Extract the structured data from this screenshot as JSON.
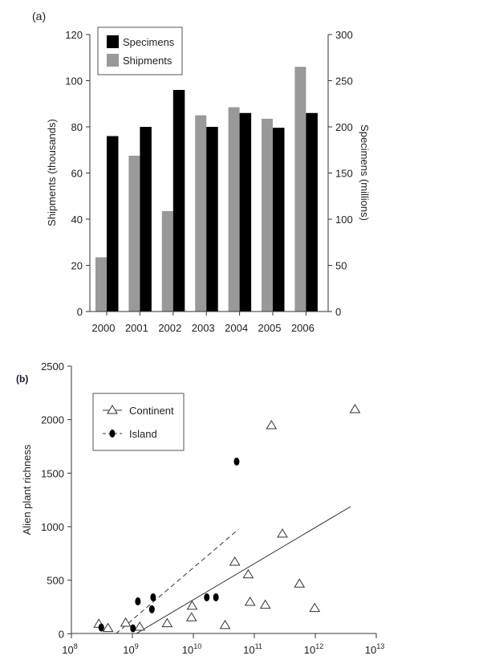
{
  "chart_data": [
    {
      "type": "bar",
      "panel_label": "(a)",
      "categories": [
        "2000",
        "2001",
        "2002",
        "2003",
        "2004",
        "2005",
        "2006"
      ],
      "series": [
        {
          "name": "Shipments",
          "axis": "left",
          "color": "#999999",
          "values": [
            23.5,
            67.5,
            43.5,
            85,
            88.5,
            83.5,
            106
          ]
        },
        {
          "name": "Specimens",
          "axis": "right",
          "color": "#000000",
          "values": [
            190,
            200,
            240,
            200,
            215,
            199,
            215
          ]
        }
      ],
      "ylabel": "Shipments (thousands)",
      "ylabel_right": "Specimens (millions)",
      "ylim": [
        0,
        120
      ],
      "ylim_right": [
        0,
        300
      ],
      "yticks": [
        "0",
        "20",
        "40",
        "60",
        "80",
        "100",
        "120"
      ],
      "yticks_right": [
        "0",
        "50",
        "100",
        "150",
        "200",
        "250",
        "300"
      ],
      "legend": {
        "position": "top-left",
        "entries": [
          "Specimens",
          "Shipments"
        ]
      },
      "grid": false
    },
    {
      "type": "scatter",
      "panel_label": "(b)",
      "xscale": "log",
      "xlim_log10": [
        8,
        13
      ],
      "xticks": [
        {
          "base": "10",
          "exp": "8"
        },
        {
          "base": "10",
          "exp": "9"
        },
        {
          "base": "10",
          "exp": "10"
        },
        {
          "base": "10",
          "exp": "11"
        },
        {
          "base": "10",
          "exp": "12"
        },
        {
          "base": "10",
          "exp": "13"
        }
      ],
      "ylabel": "Alien plant richness",
      "xlabel": "",
      "ylim": [
        0,
        2500
      ],
      "yticks": [
        "0",
        "500",
        "1000",
        "1500",
        "2000",
        "2500"
      ],
      "series": [
        {
          "name": "Continent",
          "marker": "open-triangle",
          "line": "solid",
          "points_log10x_y": [
            [
              8.45,
              90
            ],
            [
              8.6,
              50
            ],
            [
              8.89,
              100
            ],
            [
              9.12,
              62
            ],
            [
              9.57,
              95
            ],
            [
              9.98,
              258
            ],
            [
              9.97,
              150
            ],
            [
              10.52,
              78
            ],
            [
              10.68,
              670
            ],
            [
              10.9,
              552
            ],
            [
              10.93,
              295
            ],
            [
              11.18,
              268
            ],
            [
              11.28,
              1945
            ],
            [
              11.46,
              932
            ],
            [
              11.74,
              465
            ],
            [
              11.99,
              238
            ],
            [
              12.65,
              2095
            ]
          ],
          "fit_line_log10x_y": [
            [
              9.06,
              0
            ],
            [
              12.58,
              1188
            ]
          ]
        },
        {
          "name": "Island",
          "marker": "filled-circle",
          "line": "dashed",
          "points_log10x_y": [
            [
              8.49,
              58
            ],
            [
              9.01,
              50
            ],
            [
              9.09,
              302
            ],
            [
              9.32,
              228
            ],
            [
              9.34,
              340
            ],
            [
              10.22,
              340
            ],
            [
              10.37,
              340
            ],
            [
              10.71,
              1608
            ]
          ],
          "fit_line_log10x_y": [
            [
              8.73,
              0
            ],
            [
              10.74,
              975
            ]
          ]
        }
      ],
      "legend": {
        "position": "top-left",
        "entries": [
          "Continent",
          "Island"
        ]
      },
      "grid": false
    }
  ]
}
